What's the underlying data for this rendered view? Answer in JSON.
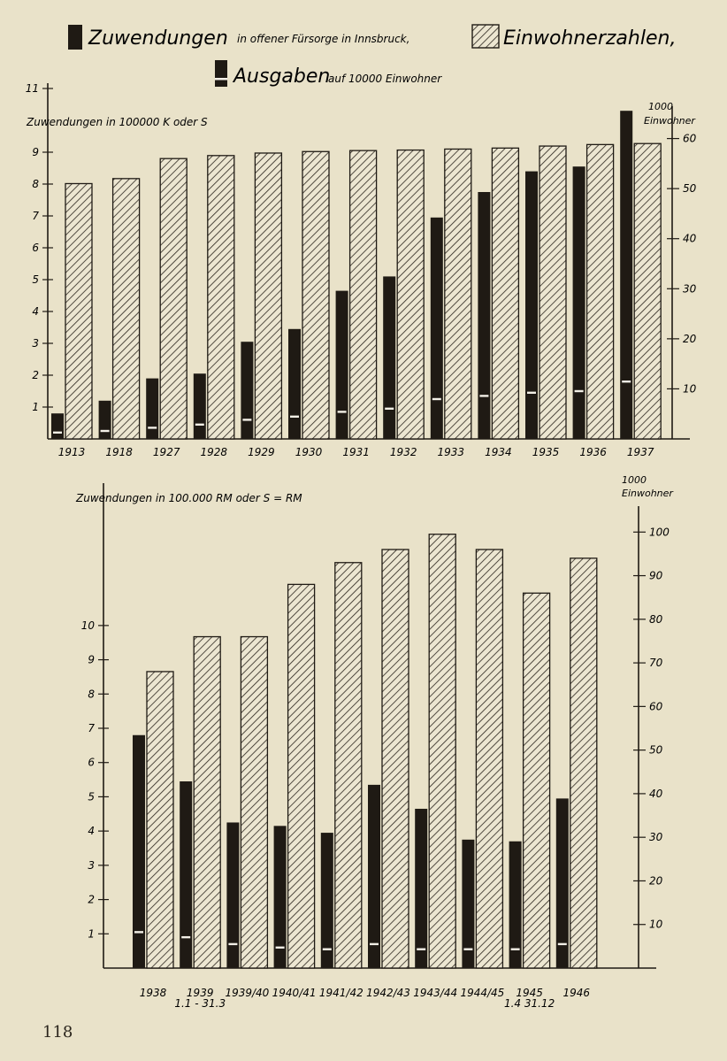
{
  "page_number": "118",
  "legend": {
    "zuwendungen": "Zuwendungen",
    "zuwendungen_suffix": "in offener Fürsorge in Innsbruck,",
    "einwohner": "Einwohnerzahlen,",
    "ausgaben": "Ausgaben",
    "ausgaben_suffix": "auf 10000 Einwohner"
  },
  "colors": {
    "paper": "#e9e2c9",
    "ink": "#1f1a14",
    "hatch": "#2a241c",
    "white_mark": "#f2efe6"
  },
  "chart_data": [
    {
      "type": "bar",
      "categories": [
        "1913",
        "1918",
        "1927",
        "1928",
        "1929",
        "1930",
        "1931",
        "1932",
        "1933",
        "1934",
        "1935",
        "1936",
        "1937"
      ],
      "category_sublabels": [
        "",
        "",
        "",
        "",
        "",
        "",
        "",
        "",
        "",
        "",
        "",
        "",
        ""
      ],
      "ylabel_left": "Zuwendungen in 100000 K oder S",
      "ylabel_right": "Einwohner",
      "right_unit": "1000",
      "ylim_left": [
        0,
        11
      ],
      "ylim_right": [
        0,
        70
      ],
      "left_ticks": [
        "1",
        "2",
        "3",
        "4",
        "5",
        "6",
        "7",
        "8",
        "9",
        "11"
      ],
      "right_ticks": [
        "10",
        "20",
        "30",
        "40",
        "50",
        "60"
      ],
      "series": [
        {
          "name": "Zuwendungen",
          "axis": "left",
          "style": "solid",
          "values": [
            0.8,
            1.2,
            1.9,
            2.05,
            3.05,
            3.45,
            4.65,
            5.1,
            6.95,
            7.75,
            8.4,
            8.55,
            10.3
          ]
        },
        {
          "name": "Einwohnerzahlen",
          "axis": "right",
          "style": "hatched",
          "values": [
            51,
            52,
            56,
            56.6,
            57.1,
            57.4,
            57.6,
            57.7,
            57.9,
            58.1,
            58.5,
            58.8,
            59
          ]
        },
        {
          "name": "Ausgaben",
          "axis": "left",
          "style": "white-mark",
          "values": [
            0.2,
            0.25,
            0.35,
            0.45,
            0.6,
            0.7,
            0.85,
            0.95,
            1.25,
            1.35,
            1.45,
            1.5,
            1.8
          ]
        }
      ]
    },
    {
      "type": "bar",
      "categories": [
        "1938",
        "1939",
        "1939/40",
        "1940/41",
        "1941/42",
        "1942/43",
        "1943/44",
        "1944/45",
        "1945",
        "1946"
      ],
      "category_sublabels": [
        "",
        "1.1 - 31.3",
        "",
        "",
        "",
        "",
        "",
        "",
        "1.4   31.12",
        ""
      ],
      "ylabel_left": "Zuwendungen in 100.000 RM oder S = RM",
      "ylabel_right": "Einwohner",
      "right_unit": "1000",
      "ylim_left": [
        0,
        14
      ],
      "ylim_right": [
        0,
        110
      ],
      "left_ticks": [
        "1",
        "2",
        "3",
        "4",
        "5",
        "6",
        "7",
        "8",
        "9",
        "10"
      ],
      "right_ticks": [
        "10",
        "20",
        "30",
        "40",
        "50",
        "60",
        "70",
        "80",
        "90",
        "100"
      ],
      "series": [
        {
          "name": "Zuwendungen",
          "axis": "left",
          "style": "solid",
          "values": [
            6.8,
            5.45,
            4.25,
            4.15,
            3.95,
            5.35,
            4.65,
            3.75,
            3.7,
            4.95
          ]
        },
        {
          "name": "Einwohnerzahlen",
          "axis": "right",
          "style": "hatched",
          "values": [
            68,
            76,
            76,
            88,
            93,
            96,
            99.5,
            96,
            86,
            94
          ]
        },
        {
          "name": "Ausgaben",
          "axis": "left",
          "style": "white-mark",
          "values": [
            1.05,
            0.9,
            0.7,
            0.6,
            0.55,
            0.7,
            0.55,
            0.55,
            0.55,
            0.7
          ]
        }
      ]
    }
  ]
}
